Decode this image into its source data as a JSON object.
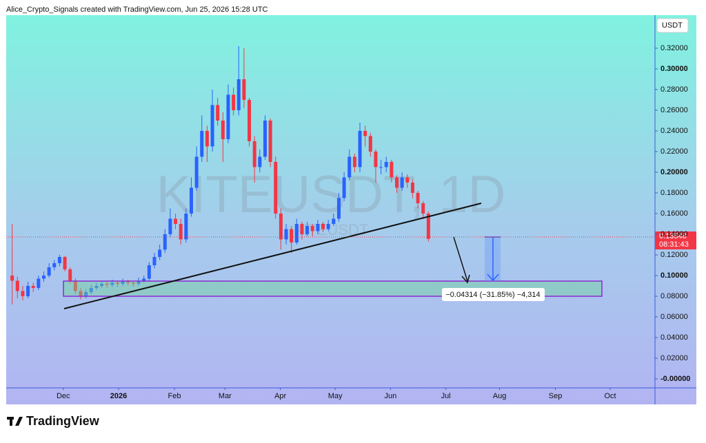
{
  "header": "Alice_Crypto_Signals created with TradingView.com, Jun 25, 2026 15:28 UTC",
  "brand": "TradingView",
  "chart_data": {
    "type": "candlestick",
    "watermark": "KITEUSDT, 1D",
    "watermark_sub": "KITEUSDT",
    "currency": "USDT",
    "countdown": "08:31:43",
    "measure_label": "−0.04314 (−31.85%) −4,314",
    "up_color": "#2962ff",
    "down_color": "#f23645",
    "open": [
      0.1,
      0.095,
      0.085,
      0.08,
      0.09,
      0.088,
      0.097,
      0.1,
      0.108,
      0.112,
      0.118,
      0.106,
      0.095,
      0.085,
      0.08,
      0.084,
      0.088,
      0.09,
      0.092,
      0.091,
      0.093,
      0.092,
      0.094,
      0.093,
      0.092,
      0.095,
      0.097,
      0.11,
      0.118,
      0.125,
      0.14,
      0.155,
      0.15,
      0.135,
      0.16,
      0.185,
      0.215,
      0.24,
      0.225,
      0.265,
      0.25,
      0.232,
      0.275,
      0.26,
      0.29,
      0.27,
      0.23,
      0.205,
      0.215,
      0.25,
      0.21,
      0.16,
      0.135,
      0.145,
      0.132,
      0.15,
      0.14,
      0.148,
      0.143,
      0.15,
      0.145,
      0.15,
      0.155,
      0.175,
      0.195,
      0.215,
      0.205,
      0.24,
      0.235,
      0.22,
      0.205,
      0.205,
      0.21,
      0.195,
      0.185,
      0.195,
      0.19,
      0.18,
      0.17,
      0.16
    ],
    "high": [
      0.15,
      0.099,
      0.09,
      0.094,
      0.093,
      0.1,
      0.104,
      0.112,
      0.115,
      0.12,
      0.119,
      0.108,
      0.097,
      0.088,
      0.087,
      0.091,
      0.093,
      0.095,
      0.094,
      0.096,
      0.095,
      0.097,
      0.096,
      0.095,
      0.098,
      0.1,
      0.113,
      0.122,
      0.13,
      0.145,
      0.165,
      0.16,
      0.155,
      0.165,
      0.195,
      0.225,
      0.255,
      0.245,
      0.28,
      0.272,
      0.258,
      0.285,
      0.282,
      0.322,
      0.32,
      0.272,
      0.235,
      0.222,
      0.255,
      0.252,
      0.215,
      0.165,
      0.15,
      0.148,
      0.155,
      0.152,
      0.152,
      0.15,
      0.154,
      0.152,
      0.154,
      0.16,
      0.18,
      0.2,
      0.222,
      0.218,
      0.248,
      0.245,
      0.238,
      0.222,
      0.212,
      0.215,
      0.212,
      0.197,
      0.2,
      0.198,
      0.193,
      0.182,
      0.172,
      0.162
    ],
    "low": [
      0.072,
      0.078,
      0.076,
      0.078,
      0.084,
      0.086,
      0.094,
      0.098,
      0.105,
      0.109,
      0.104,
      0.092,
      0.082,
      0.077,
      0.078,
      0.082,
      0.086,
      0.088,
      0.088,
      0.089,
      0.089,
      0.09,
      0.09,
      0.089,
      0.09,
      0.093,
      0.095,
      0.107,
      0.115,
      0.122,
      0.137,
      0.145,
      0.13,
      0.132,
      0.157,
      0.182,
      0.21,
      0.21,
      0.22,
      0.245,
      0.21,
      0.228,
      0.255,
      0.255,
      0.262,
      0.225,
      0.19,
      0.2,
      0.212,
      0.205,
      0.155,
      0.125,
      0.13,
      0.122,
      0.13,
      0.135,
      0.138,
      0.138,
      0.14,
      0.142,
      0.143,
      0.148,
      0.152,
      0.172,
      0.192,
      0.2,
      0.2,
      0.225,
      0.215,
      0.19,
      0.198,
      0.2,
      0.19,
      0.18,
      0.182,
      0.185,
      0.175,
      0.165,
      0.155,
      0.133
    ],
    "close": [
      0.095,
      0.085,
      0.08,
      0.09,
      0.088,
      0.097,
      0.1,
      0.108,
      0.112,
      0.118,
      0.106,
      0.095,
      0.085,
      0.08,
      0.084,
      0.088,
      0.09,
      0.092,
      0.091,
      0.093,
      0.092,
      0.094,
      0.093,
      0.092,
      0.095,
      0.097,
      0.11,
      0.118,
      0.125,
      0.14,
      0.155,
      0.15,
      0.135,
      0.16,
      0.185,
      0.215,
      0.24,
      0.225,
      0.265,
      0.25,
      0.232,
      0.275,
      0.26,
      0.29,
      0.27,
      0.23,
      0.205,
      0.215,
      0.25,
      0.21,
      0.16,
      0.135,
      0.145,
      0.132,
      0.15,
      0.14,
      0.148,
      0.143,
      0.15,
      0.145,
      0.15,
      0.155,
      0.175,
      0.195,
      0.215,
      0.205,
      0.24,
      0.235,
      0.22,
      0.205,
      0.205,
      0.21,
      0.195,
      0.185,
      0.195,
      0.19,
      0.18,
      0.17,
      0.16,
      0.13548
    ],
    "xlim": [
      -1,
      122
    ],
    "xticks": [
      {
        "value": 9.7,
        "label": "Dec"
      },
      {
        "value": 20.2,
        "label": "2026"
      },
      {
        "value": 30.8,
        "label": "Feb"
      },
      {
        "value": 40.4,
        "label": "Mar"
      },
      {
        "value": 50.9,
        "label": "Apr"
      },
      {
        "value": 61.3,
        "label": "May"
      },
      {
        "value": 71.8,
        "label": "Jun"
      },
      {
        "value": 82.3,
        "label": "Jul"
      },
      {
        "value": 92.5,
        "label": "Aug"
      },
      {
        "value": 103.1,
        "label": "Sep"
      },
      {
        "value": 113.5,
        "label": "Oct"
      }
    ],
    "ylim": [
      -0.0087,
      0.352
    ],
    "yticks": [
      {
        "value": 0.32,
        "label": "0.32000"
      },
      {
        "value": 0.3,
        "label": "0.30000"
      },
      {
        "value": 0.28,
        "label": "0.28000"
      },
      {
        "value": 0.26,
        "label": "0.26000"
      },
      {
        "value": 0.24,
        "label": "0.24000"
      },
      {
        "value": 0.22,
        "label": "0.22000"
      },
      {
        "value": 0.2,
        "label": "0.20000"
      },
      {
        "value": 0.18,
        "label": "0.18000"
      },
      {
        "value": 0.16,
        "label": "0.16000"
      },
      {
        "value": 0.14,
        "label": "0.14000"
      },
      {
        "value": 0.12,
        "label": "0.12000"
      },
      {
        "value": 0.1,
        "label": "0.10000"
      },
      {
        "value": 0.08,
        "label": "0.08000"
      },
      {
        "value": 0.06,
        "label": "0.06000"
      },
      {
        "value": 0.04,
        "label": "0.04000"
      },
      {
        "value": 0.02,
        "label": "0.02000"
      },
      {
        "value": 0,
        "label": "-0.00000"
      }
    ]
  }
}
